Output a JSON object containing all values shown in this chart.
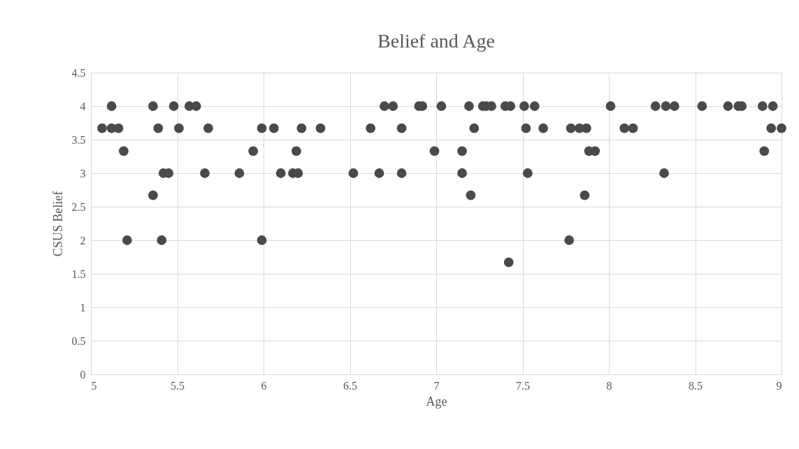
{
  "chart_data": {
    "type": "scatter",
    "title": "Belief and Age",
    "xlabel": "Age",
    "ylabel": "CSUS Belief",
    "xlim": [
      5,
      9
    ],
    "xticks": [
      5,
      5.5,
      6,
      6.5,
      7,
      7.5,
      8,
      8.5,
      9
    ],
    "ylim": [
      0,
      4.5
    ],
    "yticks": [
      0,
      0.5,
      1,
      1.5,
      2,
      2.5,
      3,
      3.5,
      4,
      4.5
    ],
    "grid": true,
    "marker": "circle",
    "series": [
      {
        "color": "#4a4a4a",
        "x": [
          5.12,
          5.36,
          5.48,
          5.57,
          5.61,
          5.065,
          5.12,
          5.16,
          5.39,
          5.51,
          5.68,
          5.99,
          6.06,
          5.19,
          5.94,
          5.42,
          5.45,
          5.66,
          5.86,
          6.1,
          5.36,
          5.21,
          5.41,
          5.99,
          6.7,
          6.75,
          6.9,
          6.92,
          7.03,
          7.19,
          7.27,
          7.29,
          7.32,
          6.22,
          6.33,
          6.62,
          6.8,
          7.22,
          6.19,
          6.99,
          7.15,
          6.17,
          6.2,
          6.52,
          6.67,
          6.8,
          7.15,
          7.2,
          7.4,
          7.43,
          7.51,
          7.57,
          8.01,
          8.27,
          8.33,
          8.38,
          8.54,
          7.52,
          7.62,
          7.78,
          7.83,
          7.87,
          8.09,
          8.14,
          7.885,
          7.92,
          7.53,
          8.32,
          7.86,
          7.77,
          7.42,
          8.69,
          8.75,
          8.77,
          8.89,
          8.95,
          8.94,
          9,
          8.9
        ],
        "values": [
          4,
          4,
          4,
          4,
          4,
          3.67,
          3.67,
          3.67,
          3.67,
          3.67,
          3.67,
          3.67,
          3.67,
          3.33,
          3.33,
          3,
          3,
          3,
          3,
          3,
          2.67,
          2,
          2,
          2,
          4,
          4,
          4,
          4,
          4,
          4,
          4,
          4,
          4,
          3.67,
          3.67,
          3.67,
          3.67,
          3.67,
          3.33,
          3.33,
          3.33,
          3,
          3,
          3,
          3,
          3,
          3,
          2.67,
          4,
          4,
          4,
          4,
          4,
          4,
          4,
          4,
          4,
          3.67,
          3.67,
          3.67,
          3.67,
          3.67,
          3.67,
          3.67,
          3.33,
          3.33,
          3,
          3,
          2.67,
          2,
          1.67,
          4,
          4,
          4,
          4,
          4,
          3.67,
          3.67,
          3.33
        ]
      }
    ]
  }
}
